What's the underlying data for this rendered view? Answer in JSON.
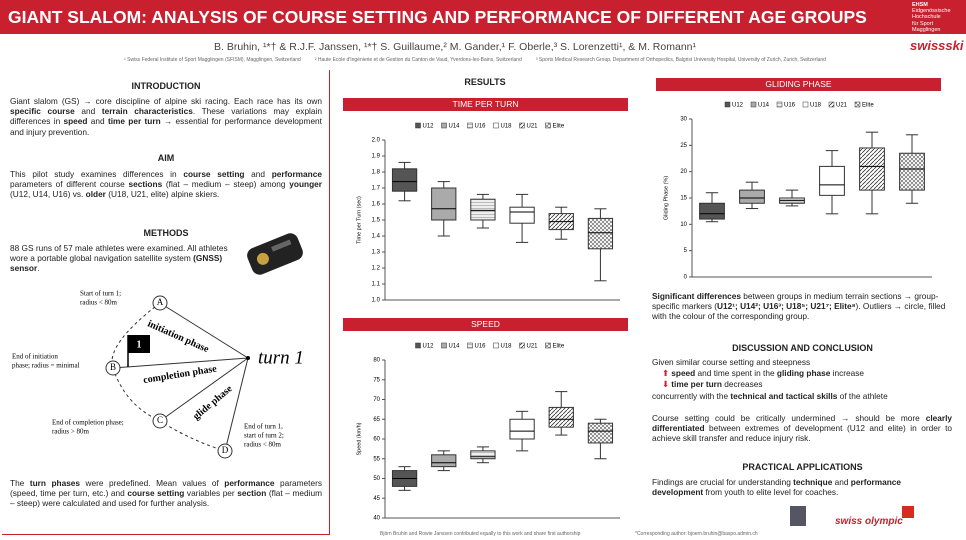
{
  "header": {
    "title": "GIANT SLALOM: ANALYSIS  OF COURSE SETTING AND PERFORMANCE  OF DIFFERENT AGE GROUPS",
    "institution": [
      "EHSM",
      "Eidgenössische",
      "Hochschule",
      "für Sport",
      "Magglingen"
    ],
    "brand": "swissski",
    "authors": "B. Bruhin, ¹*† & R.J.F. Janssen, ¹*† S. Guillaume,² M. Gander,¹ F. Oberle,³ S. Lorenzetti¹, & M. Romann¹",
    "affiliations": [
      "¹ Swiss Federal Institute of Sport Magglingen (SFISM), Magglingen, Switzerland",
      "² Haute Ecole d'Ingénierie et de Gestion du Canton de Vaud, Yverdons-les-Bains, Switzerland",
      "³ Sports Medical Research Group, Department of Orthopedics, Balgrist University Hospital, University of Zurich, Zurich, Switzerland"
    ]
  },
  "left": {
    "intro_heading": "INTRODUCTION",
    "intro": [
      "Giant slalom (GS) → core discipline of alpine ski racing. Each race has its own ",
      {
        "bold": "specific course"
      },
      " and ",
      {
        "bold": "terrain characteristics"
      },
      ". These variations may explain differences in ",
      {
        "bold": "speed"
      },
      " and ",
      {
        "bold": "time per turn"
      },
      " → essential for performance development and injury prevention."
    ],
    "aim_heading": "AIM",
    "aim": [
      "This pilot study examines differences in ",
      {
        "bold": "course setting"
      },
      " and ",
      {
        "bold": "performance"
      },
      " parameters of different course ",
      {
        "bold": "sections"
      },
      " (flat – medium – steep) among ",
      {
        "bold": "younger"
      },
      " (U12, U14, U16) vs. ",
      {
        "bold": "older"
      },
      " (U18, U21, elite) alpine skiers."
    ],
    "methods_heading": "METHODS",
    "methods": [
      "88 GS runs of 57 male athletes were examined. All athletes wore a portable global navigation satellite system ",
      {
        "bold": "(GNSS) sensor"
      },
      "."
    ],
    "diagram": {
      "points": [
        "A",
        "B",
        "C",
        "D"
      ],
      "flag": "1",
      "turn": "turn 1",
      "phases": [
        "initiation phase",
        "completion phase",
        "glide phase"
      ],
      "start": [
        "Start of turn 1;",
        "radius < 80m"
      ],
      "end_initiation": [
        "End of initiation",
        "phase; radius = minimal"
      ],
      "end_completion": [
        "End of completion phase;",
        "radius > 80m"
      ],
      "end_turn": [
        "End of turn 1,",
        "start of turn 2;",
        "radius < 80m"
      ]
    },
    "procedure": [
      "The ",
      {
        "bold": "turn phases"
      },
      " were predefined. Mean values of ",
      {
        "bold": "performance"
      },
      " parameters (speed, time per turn, etc.) and ",
      {
        "bold": "course setting"
      },
      " variables per ",
      {
        "bold": "section"
      },
      " (flat – medium – steep) were calculated and used for further analysis."
    ]
  },
  "results_heading": "RESULTS",
  "charts": [
    {
      "type": "boxplot",
      "heading": "TIME PER TURN",
      "y_label": "Time per Turn (sec)",
      "ylim": [
        1,
        2
      ],
      "yticks": [
        {
          "value": 1,
          "label": "1.0"
        },
        1.1,
        1.2,
        1.3,
        1.4,
        1.5,
        1.6,
        1.7,
        1.8,
        1.9,
        {
          "value": 2,
          "label": "2.0"
        }
      ],
      "groups": [
        {
          "name": "U12",
          "color": "#555555",
          "min": 1.62,
          "q1": 1.68,
          "median": 1.74,
          "q3": 1.82,
          "max": 1.86
        },
        {
          "name": "U14",
          "color": "#aaaaaa",
          "min": 1.4,
          "q1": 1.5,
          "median": 1.57,
          "q3": 1.7,
          "max": 1.74
        },
        {
          "name": "U16",
          "color": "#dddddd",
          "pattern": "hlines",
          "min": 1.45,
          "q1": 1.5,
          "median": 1.56,
          "q3": 1.63,
          "max": 1.66
        },
        {
          "name": "U18",
          "color": "#ffffff",
          "min": 1.36,
          "q1": 1.48,
          "median": 1.55,
          "q3": 1.58,
          "max": 1.66
        },
        {
          "name": "U21",
          "color": "#888888",
          "pattern": "hatch",
          "min": 1.38,
          "q1": 1.44,
          "median": 1.49,
          "q3": 1.54,
          "max": 1.58
        },
        {
          "name": "Elite",
          "color": "#bbbbbb",
          "pattern": "grid",
          "min": 1.12,
          "q1": 1.32,
          "median": 1.42,
          "q3": 1.51,
          "max": 1.57
        }
      ]
    },
    {
      "type": "boxplot",
      "heading": "SPEED",
      "y_label": "Speed (km/h)",
      "ylim": [
        40,
        80
      ],
      "yticks": [
        40,
        45,
        50,
        55,
        60,
        65,
        70,
        75,
        80
      ],
      "groups": [
        {
          "name": "U12",
          "color": "#555555",
          "min": 47,
          "q1": 48,
          "median": 50,
          "q3": 52,
          "max": 53
        },
        {
          "name": "U14",
          "color": "#aaaaaa",
          "min": 52,
          "q1": 53,
          "median": 54,
          "q3": 56,
          "max": 57
        },
        {
          "name": "U16",
          "color": "#dddddd",
          "pattern": "hlines",
          "min": 54,
          "q1": 55,
          "median": 55.5,
          "q3": 57,
          "max": 58
        },
        {
          "name": "U18",
          "color": "#ffffff",
          "min": 57,
          "q1": 60,
          "median": 62,
          "q3": 65,
          "max": 67
        },
        {
          "name": "U21",
          "color": "#888888",
          "pattern": "hatch",
          "min": 61,
          "q1": 63,
          "median": 65,
          "q3": 68,
          "max": 72
        },
        {
          "name": "Elite",
          "color": "#bbbbbb",
          "pattern": "grid",
          "min": 55,
          "q1": 59,
          "median": 62,
          "q3": 64,
          "max": 65
        }
      ]
    },
    {
      "type": "boxplot",
      "heading": "GLIDING PHASE",
      "y_label": "Gliding Phase (%)",
      "ylim": [
        0,
        30
      ],
      "yticks": [
        0,
        5,
        10,
        15,
        20,
        25,
        30
      ],
      "groups": [
        {
          "name": "U12",
          "color": "#555555",
          "min": 10.5,
          "q1": 11,
          "median": 12,
          "q3": 14,
          "max": 16
        },
        {
          "name": "U14",
          "color": "#aaaaaa",
          "min": 13,
          "q1": 14,
          "median": 15,
          "q3": 16.5,
          "max": 18
        },
        {
          "name": "U16",
          "color": "#dddddd",
          "pattern": "hlines",
          "min": 13.5,
          "q1": 14,
          "median": 14.5,
          "q3": 15,
          "max": 16.5
        },
        {
          "name": "U18",
          "color": "#ffffff",
          "min": 12,
          "q1": 15.5,
          "median": 17.5,
          "q3": 21,
          "max": 24
        },
        {
          "name": "U21",
          "color": "#888888",
          "pattern": "hatch",
          "min": 12,
          "q1": 16.5,
          "median": 21,
          "q3": 24.5,
          "max": 27.5
        },
        {
          "name": "Elite",
          "color": "#bbbbbb",
          "pattern": "grid",
          "min": 14,
          "q1": 16.5,
          "median": 20.5,
          "q3": 23.5,
          "max": 27
        }
      ]
    }
  ],
  "right": {
    "findings": [
      {
        "bold": "Significant differences"
      },
      " between groups in medium terrain sections → group-specific markers (",
      {
        "bold": "U12¹; U14²; U16³; U18⁵; U21⁷; Elite⁸"
      },
      "). Outliers → circle, filled with the colour of the corresponding group."
    ],
    "discussion_heading": "DISCUSSION AND CONCLUSION",
    "given": "Given similar course setting and steepness",
    "up": [
      {
        "bold": "speed"
      },
      " and time spent in the ",
      {
        "bold": "gliding phase"
      },
      " increase"
    ],
    "down": [
      {
        "bold": "time per turn"
      },
      " decreases"
    ],
    "concurrently": [
      "concurrently with the ",
      {
        "bold": "technical and tactical skills"
      },
      " of the athlete"
    ],
    "undermined": [
      "Course setting could be critically undermined → should be more ",
      {
        "bold": "clearly differentiated"
      },
      " between extremes of development (U12 and elite) in order to achieve skill transfer and reduce injury risk."
    ],
    "practical_heading": "PRACTICAL APPLICATIONS",
    "practical": [
      "Findings are crucial for understanding ",
      {
        "bold": "technique"
      },
      " and ",
      {
        "bold": "performance development"
      },
      " from youth to elite level for coaches."
    ]
  },
  "footer": {
    "equal": "Björn Bruhin and Rowie Janssen contributed equally to this work and share first authorship",
    "corresponding": "*Corresponding author: bjoern.bruhin@baspo.admin.ch",
    "logo": "swiss olympic"
  }
}
